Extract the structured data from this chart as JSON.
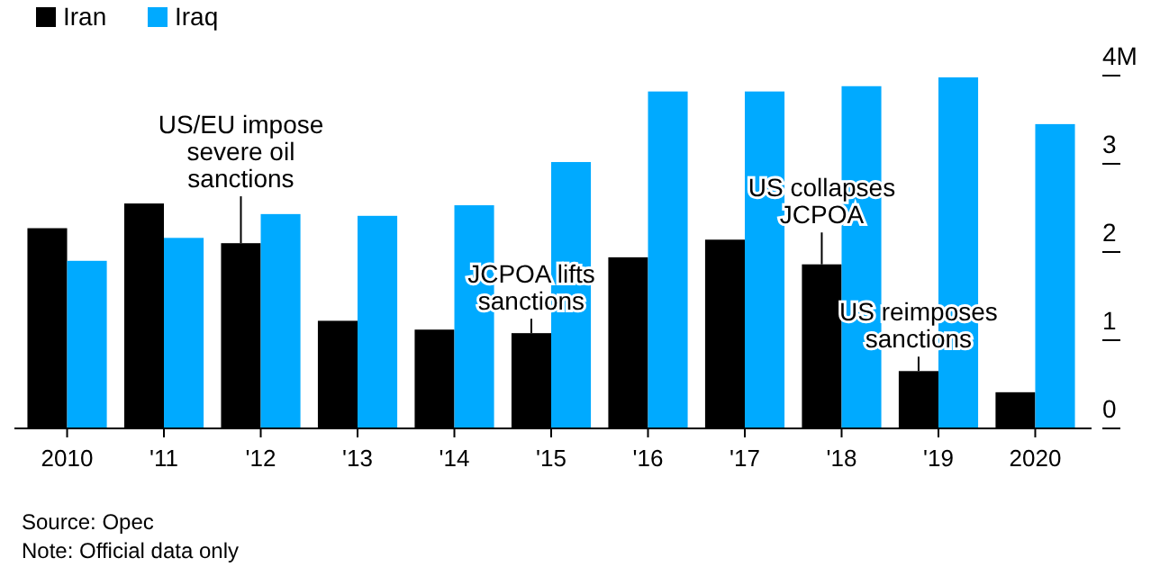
{
  "chart_data": {
    "type": "bar",
    "categories": [
      "2010",
      "'11",
      "'12",
      "'13",
      "'14",
      "'15",
      "'16",
      "'17",
      "'18",
      "'19",
      "2020"
    ],
    "series": [
      {
        "name": "Iran",
        "color": "#000000",
        "values": [
          2.27,
          2.55,
          2.1,
          1.22,
          1.12,
          1.08,
          1.94,
          2.14,
          1.86,
          0.65,
          0.41
        ]
      },
      {
        "name": "Iraq",
        "color": "#00aaff",
        "values": [
          1.9,
          2.16,
          2.43,
          2.41,
          2.53,
          3.02,
          3.82,
          3.82,
          3.88,
          3.98,
          3.45
        ]
      }
    ],
    "ylim": [
      0,
      4
    ],
    "yticks": [
      0,
      1,
      2,
      3,
      {
        "value": 4,
        "label": "4M"
      }
    ],
    "legend": "top left",
    "grid": false,
    "annotations": [
      {
        "text": "US/EU impose severe oil sanctions",
        "x": "'12",
        "y": 2.1
      },
      {
        "text": "JCPOA lifts sanctions",
        "x": "'15",
        "y": 1.08
      },
      {
        "text": "US collapses JCPOA",
        "x": "'18",
        "y": 1.86
      },
      {
        "text": "US reimposes sanctions",
        "x": "'19",
        "y": 0.65
      },
      "Source: Opec",
      "Note: Official data only"
    ]
  }
}
